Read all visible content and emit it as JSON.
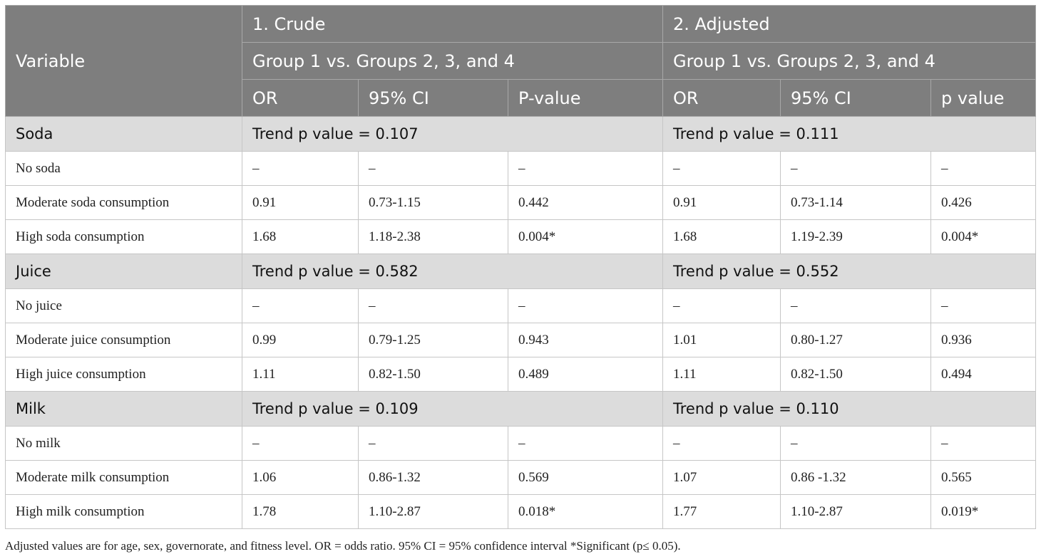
{
  "header": {
    "variable": "Variable",
    "crude_title": "1. Crude",
    "adjusted_title": "2. Adjusted",
    "crude_group": "Group 1 vs. Groups 2, 3, and 4",
    "adjusted_group": "Group 1 vs. Groups 2, 3, and 4",
    "crude_cols": [
      "OR",
      "95% CI",
      "P-value"
    ],
    "adjusted_cols": [
      "OR",
      "95% CI",
      "p value"
    ]
  },
  "sections": [
    {
      "name": "Soda",
      "crude_trend": "Trend p value = 0.107",
      "adjusted_trend": "Trend p value = 0.111",
      "rows": [
        {
          "label": "No soda",
          "c_or": "–",
          "c_ci": "–",
          "c_p": "–",
          "a_or": "–",
          "a_ci": "–",
          "a_p": "–"
        },
        {
          "label": "Moderate soda consumption",
          "c_or": "0.91",
          "c_ci": "0.73-1.15",
          "c_p": "0.442",
          "a_or": "0.91",
          "a_ci": "0.73-1.14",
          "a_p": "0.426"
        },
        {
          "label": "High soda consumption",
          "c_or": "1.68",
          "c_ci": "1.18-2.38",
          "c_p": "0.004*",
          "a_or": "1.68",
          "a_ci": "1.19-2.39",
          "a_p": "0.004*"
        }
      ]
    },
    {
      "name": "Juice",
      "crude_trend": "Trend p value = 0.582",
      "adjusted_trend": "Trend p value = 0.552",
      "rows": [
        {
          "label": "No juice",
          "c_or": "–",
          "c_ci": "–",
          "c_p": "–",
          "a_or": "–",
          "a_ci": "–",
          "a_p": "–"
        },
        {
          "label": "Moderate juice consumption",
          "c_or": "0.99",
          "c_ci": "0.79-1.25",
          "c_p": "0.943",
          "a_or": "1.01",
          "a_ci": "0.80-1.27",
          "a_p": "0.936"
        },
        {
          "label": "High juice consumption",
          "c_or": "1.11",
          "c_ci": "0.82-1.50",
          "c_p": "0.489",
          "a_or": "1.11",
          "a_ci": "0.82-1.50",
          "a_p": "0.494"
        }
      ]
    },
    {
      "name": "Milk",
      "crude_trend": "Trend p value = 0.109",
      "adjusted_trend": "Trend p value = 0.110",
      "rows": [
        {
          "label": "No milk",
          "c_or": "–",
          "c_ci": "–",
          "c_p": "–",
          "a_or": "–",
          "a_ci": "–",
          "a_p": "–"
        },
        {
          "label": "Moderate milk consumption",
          "c_or": "1.06",
          "c_ci": "0.86-1.32",
          "c_p": "0.569",
          "a_or": "1.07",
          "a_ci": "0.86 -1.32",
          "a_p": "0.565"
        },
        {
          "label": "High milk consumption",
          "c_or": "1.78",
          "c_ci": "1.10-2.87",
          "c_p": "0.018*",
          "a_or": "1.77",
          "a_ci": "1.10-2.87",
          "a_p": "0.019*"
        }
      ]
    }
  ],
  "footnote": "Adjusted values are for age, sex, governorate, and fitness level. OR = odds ratio. 95% CI = 95% confidence interval *Significant (p≤ 0.05).",
  "colors": {
    "header_bg": "#7e7e7e",
    "section_bg": "#dcdcdc",
    "border": "#c6c6c6"
  }
}
